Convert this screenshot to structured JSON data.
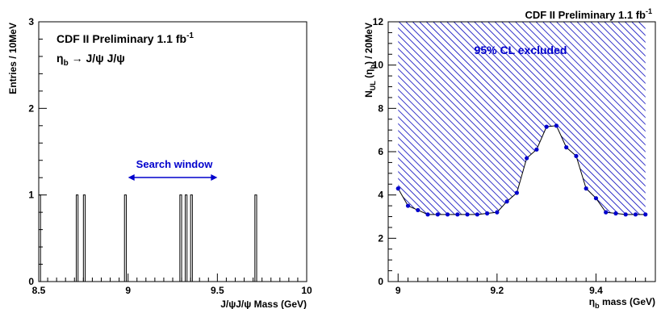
{
  "chart_data": [
    {
      "type": "histogram",
      "annotation_title": "CDF II Preliminary 1.1 fb",
      "annotation_title_sup": "-1",
      "process_label_eta": "η",
      "process_label_sub": "b",
      "process_label_rest": "→ J/ψ J/ψ",
      "xlabel": "J/ψJ/ψ Mass (GeV)",
      "ylabel": "Entries / 10MeV",
      "xlim": [
        8.5,
        10
      ],
      "ylim": [
        0,
        3
      ],
      "xticks": [
        "8.5",
        "9",
        "9.5",
        "10"
      ],
      "yticks": [
        "0",
        "1",
        "2",
        "3"
      ],
      "bin_width": 0.01,
      "entries": [
        8.5,
        8.71,
        8.75,
        8.98,
        9.29,
        9.32,
        9.35,
        9.71
      ],
      "entry_counts": [
        1,
        1,
        1,
        1,
        1,
        1,
        1,
        1
      ],
      "search_window_label": "Search window",
      "search_window": [
        9.0,
        9.5
      ],
      "color": "#0000cc"
    },
    {
      "type": "line",
      "annotation_title": "CDF II Preliminary 1.1 fb",
      "annotation_title_sup": "-1",
      "region_label": "95% CL excluded",
      "xlabel_eta": "η",
      "xlabel_sub": "b",
      "xlabel_rest": " mass (GeV)",
      "ylabel_main": "N",
      "ylabel_sub": "UL",
      "ylabel_mid": " (η",
      "ylabel_sub2": "b",
      "ylabel_rest": ") / 20MeV",
      "xlim": [
        8.98,
        9.52
      ],
      "ylim": [
        0,
        12
      ],
      "xticks": [
        "9",
        "9.2",
        "9.4"
      ],
      "yticks": [
        "0",
        "2",
        "4",
        "6",
        "8",
        "10",
        "12"
      ],
      "x": [
        9.0,
        9.02,
        9.04,
        9.06,
        9.08,
        9.1,
        9.12,
        9.14,
        9.16,
        9.18,
        9.2,
        9.22,
        9.24,
        9.26,
        9.28,
        9.3,
        9.32,
        9.34,
        9.36,
        9.38,
        9.4,
        9.42,
        9.44,
        9.46,
        9.48,
        9.5
      ],
      "y": [
        4.3,
        3.5,
        3.3,
        3.1,
        3.1,
        3.1,
        3.1,
        3.1,
        3.1,
        3.15,
        3.2,
        3.7,
        4.1,
        5.7,
        6.1,
        7.15,
        7.2,
        6.2,
        5.8,
        4.3,
        3.85,
        3.2,
        3.15,
        3.1,
        3.1,
        3.1
      ],
      "excluded_top": 12,
      "color": "#0000cc"
    }
  ]
}
